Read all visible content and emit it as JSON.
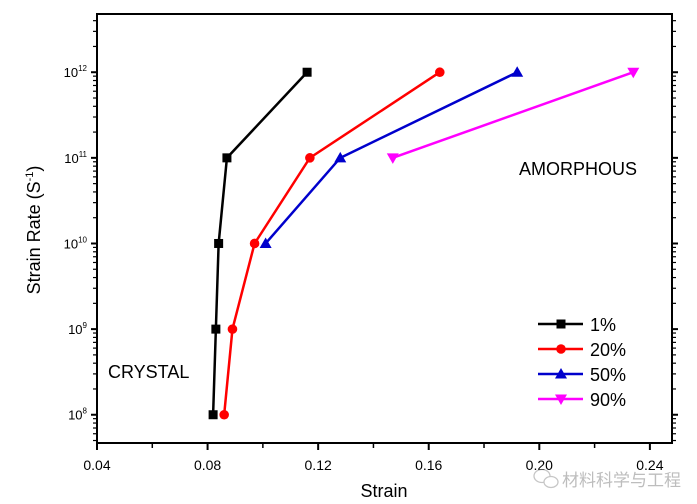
{
  "chart_data": {
    "type": "line",
    "xlabel": "Strain",
    "ylabel": "Strain Rate (S",
    "ylabel_sup": "-1",
    "ylabel_close": ")",
    "xlim": [
      0.04,
      0.248
    ],
    "ylim_log10": [
      7.67,
      12.68
    ],
    "y_scale": "log",
    "x_ticks": [
      "0.04",
      "0.08",
      "0.12",
      "0.16",
      "0.20",
      "0.24"
    ],
    "x_tick_values": [
      0.04,
      0.08,
      0.12,
      0.16,
      0.2,
      0.24
    ],
    "y_ticks": [
      {
        "base": "10",
        "exp": "8"
      },
      {
        "base": "10",
        "exp": "9"
      },
      {
        "base": "10",
        "exp": "10"
      },
      {
        "base": "10",
        "exp": "11"
      },
      {
        "base": "10",
        "exp": "12"
      }
    ],
    "y_tick_exponents": [
      8,
      9,
      10,
      11,
      12
    ],
    "grid": false,
    "legend_position": "bottom-right",
    "series": [
      {
        "name": "1%",
        "color": "#000000",
        "marker": "square",
        "x": [
          0.082,
          0.083,
          0.084,
          0.087,
          0.116
        ],
        "y": [
          100000000.0,
          1000000000.0,
          10000000000.0,
          100000000000.0,
          1000000000000.0
        ]
      },
      {
        "name": "20%",
        "color": "#ff0000",
        "marker": "circle",
        "x": [
          0.086,
          0.089,
          0.097,
          0.117,
          0.164
        ],
        "y": [
          100000000.0,
          1000000000.0,
          10000000000.0,
          100000000000.0,
          1000000000000.0
        ]
      },
      {
        "name": "50%",
        "color": "#0000cc",
        "marker": "triangle-up",
        "x": [
          0.101,
          0.128,
          0.192
        ],
        "y": [
          10000000000.0,
          100000000000.0,
          1000000000000.0
        ]
      },
      {
        "name": "90%",
        "color": "#ff00ff",
        "marker": "triangle-down",
        "x": [
          0.147,
          0.234
        ],
        "y": [
          100000000000.0,
          1000000000000.0
        ]
      }
    ],
    "annotations": [
      {
        "text": "AMORPHOUS",
        "x": 0.188,
        "y": 50000000000.0
      },
      {
        "text": "CRYSTAL",
        "x": 0.044,
        "y": 400000000.0
      }
    ]
  },
  "watermark": {
    "text": "材料科学与工程",
    "icon": "wechat-icon"
  }
}
